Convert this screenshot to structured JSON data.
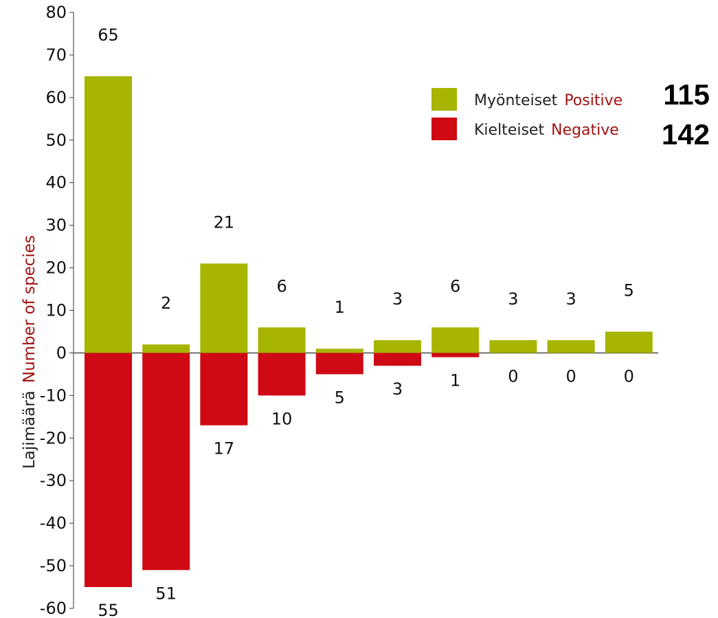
{
  "chart_data": {
    "type": "bar",
    "ylabel": {
      "fi": "Lajimäärä",
      "en": "Number of species"
    },
    "ylim": [
      -60,
      80
    ],
    "yticks": [
      "80",
      "70",
      "60",
      "50",
      "40",
      "30",
      "20",
      "10",
      "0",
      "-10",
      "-20",
      "-30",
      "-40",
      "-50",
      "-60"
    ],
    "series": [
      {
        "name_fi": "Myönteiset",
        "name_en": "Positive",
        "total": "115",
        "color": "#a7b400",
        "values": [
          65,
          2,
          21,
          6,
          1,
          3,
          6,
          3,
          3,
          5
        ],
        "labels": [
          "65",
          "2",
          "21",
          "6",
          "1",
          "3",
          "6",
          "3",
          "3",
          "5"
        ]
      },
      {
        "name_fi": "Kielteiset",
        "name_en": "Negative",
        "total": "142",
        "color": "#cf0a14",
        "values": [
          -55,
          -51,
          -17,
          -10,
          -5,
          -3,
          -1,
          0,
          0,
          0
        ],
        "labels": [
          "55",
          "51",
          "17",
          "10",
          "5",
          "3",
          "1",
          "0",
          "0",
          "0"
        ]
      }
    ],
    "grid": false,
    "legend": "top-right"
  }
}
